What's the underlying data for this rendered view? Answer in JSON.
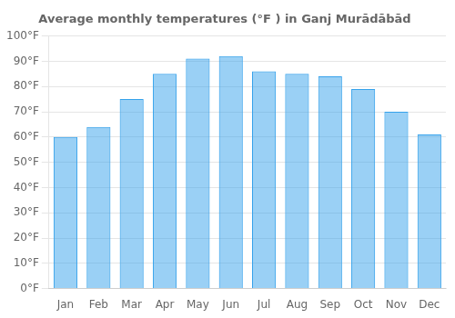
{
  "chart_data": {
    "type": "bar",
    "title": "Average monthly temperatures (°F ) in Ganj Murādābād",
    "categories": [
      "Jan",
      "Feb",
      "Mar",
      "Apr",
      "May",
      "Jun",
      "Jul",
      "Aug",
      "Sep",
      "Oct",
      "Nov",
      "Dec"
    ],
    "values": [
      60,
      64,
      75,
      85,
      91,
      92,
      86,
      85,
      84,
      79,
      70,
      61
    ],
    "ylim": [
      0,
      100
    ],
    "yticks": [
      {
        "value": 0,
        "label": "0°F"
      },
      {
        "value": 10,
        "label": "10°F"
      },
      {
        "value": 20,
        "label": "20°F"
      },
      {
        "value": 30,
        "label": "30°F"
      },
      {
        "value": 40,
        "label": "40°F"
      },
      {
        "value": 50,
        "label": "50°F"
      },
      {
        "value": 60,
        "label": "60°F"
      },
      {
        "value": 70,
        "label": "70°F"
      },
      {
        "value": 80,
        "label": "80°F"
      },
      {
        "value": 90,
        "label": "90°F"
      },
      {
        "value": 100,
        "label": "100°F"
      }
    ],
    "grid": true
  }
}
